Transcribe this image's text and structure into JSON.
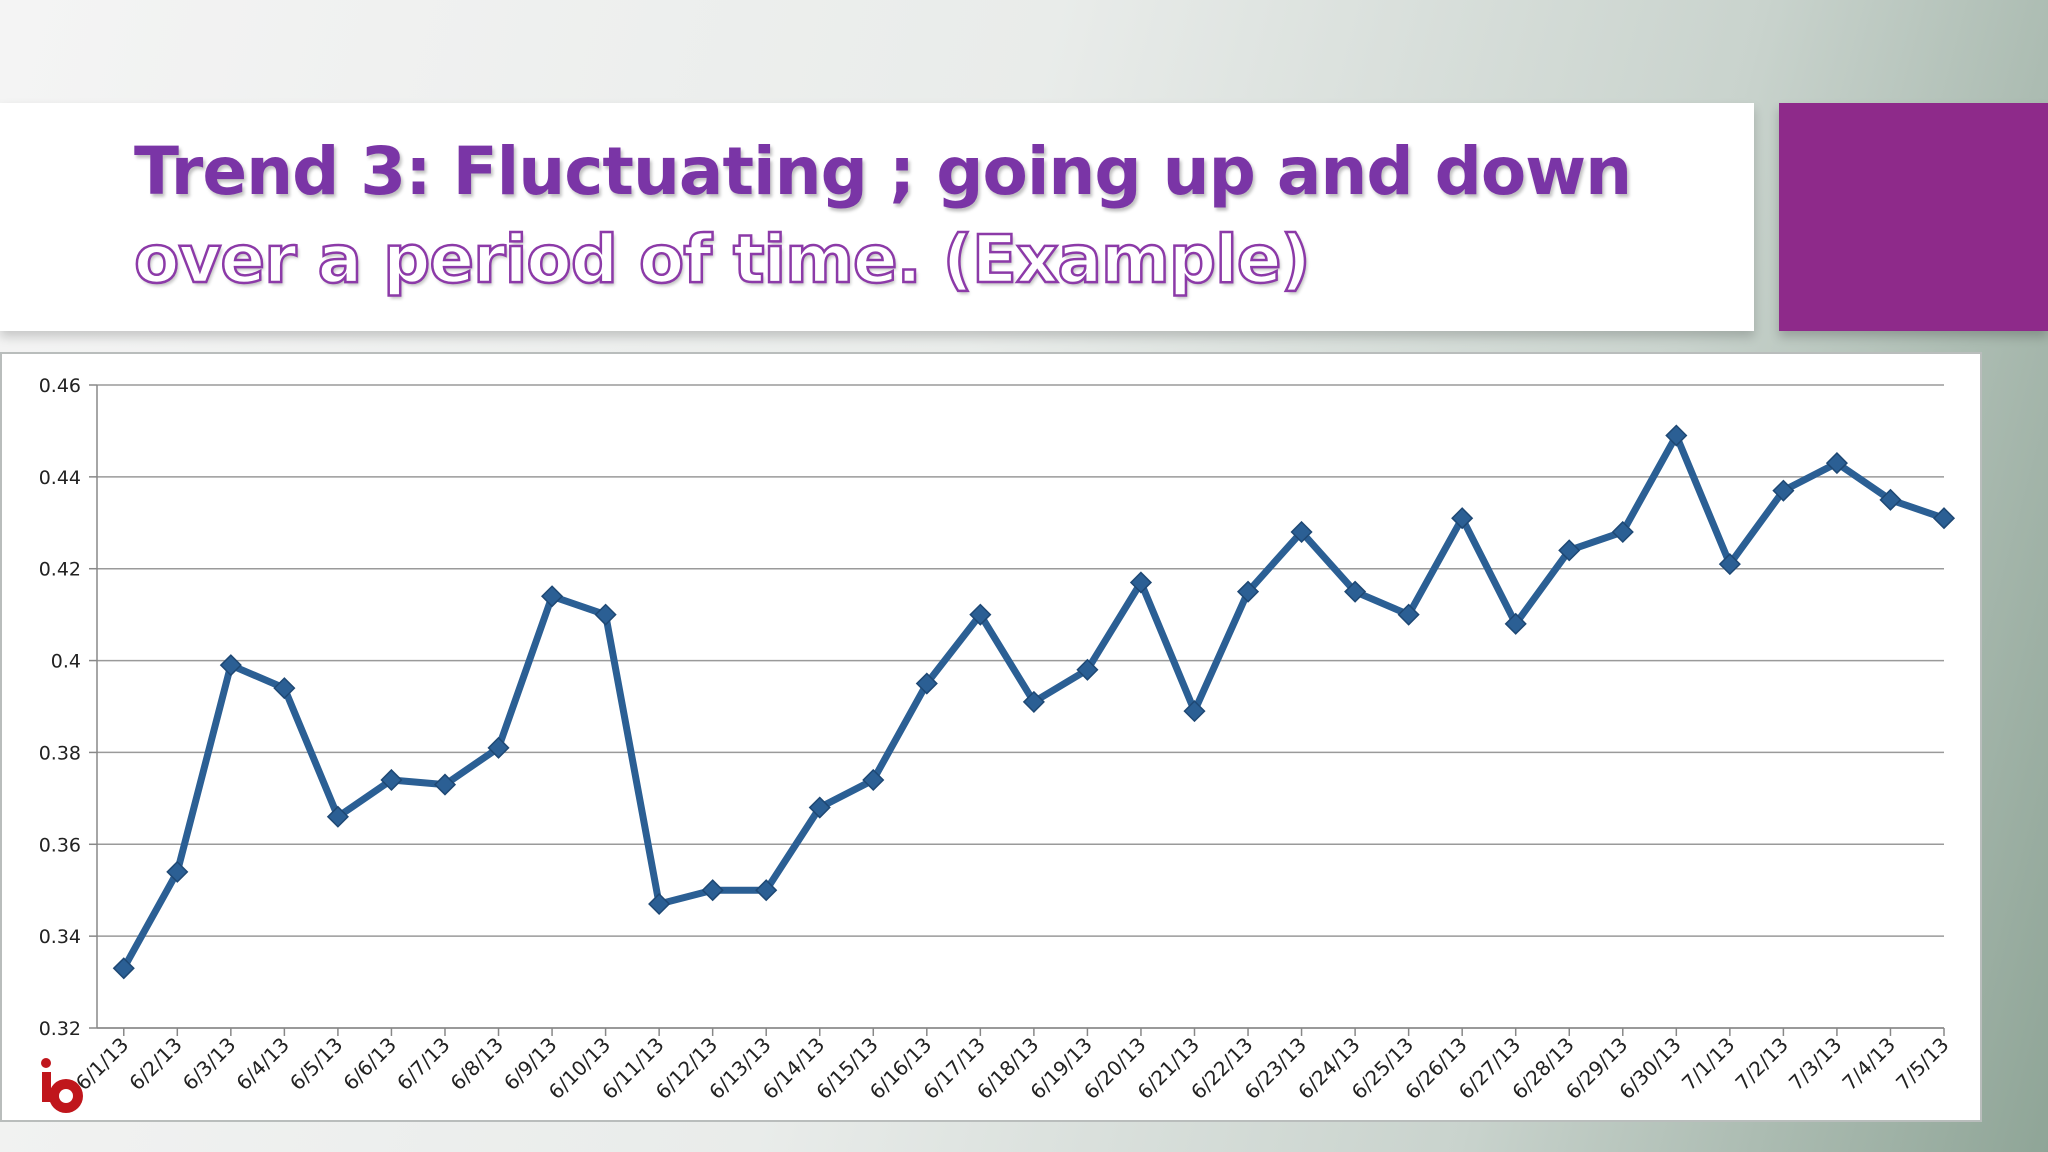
{
  "slide": {
    "title_solid": "Trend 3: Fluctuating ; going up and down",
    "title_outline": " over a period of time. (Example)",
    "accent_color": "#8e2a8a",
    "title_color": "#7a35a6"
  },
  "logo": {
    "text": "ielts Backup",
    "icon": "ielts-backup-logo",
    "color": "#c0161c"
  },
  "chart_data": {
    "type": "line",
    "line_color": "#2b5f94",
    "grid": true,
    "ylim": [
      0.32,
      0.46
    ],
    "yticks": [
      "0.32",
      "0.34",
      "0.36",
      "0.38",
      "0.4",
      "0.42",
      "0.44",
      "0.46"
    ],
    "categories": [
      "6/1/13",
      "6/2/13",
      "6/3/13",
      "6/4/13",
      "6/5/13",
      "6/6/13",
      "6/7/13",
      "6/8/13",
      "6/9/13",
      "6/10/13",
      "6/11/13",
      "6/12/13",
      "6/13/13",
      "6/14/13",
      "6/15/13",
      "6/16/13",
      "6/17/13",
      "6/18/13",
      "6/19/13",
      "6/20/13",
      "6/21/13",
      "6/22/13",
      "6/23/13",
      "6/24/13",
      "6/25/13",
      "6/26/13",
      "6/27/13",
      "6/28/13",
      "6/29/13",
      "6/30/13",
      "7/1/13",
      "7/2/13",
      "7/3/13",
      "7/4/13",
      "7/5/13"
    ],
    "values": [
      0.333,
      0.354,
      0.399,
      0.394,
      0.366,
      0.374,
      0.373,
      0.381,
      0.414,
      0.41,
      0.347,
      0.35,
      0.35,
      0.368,
      0.374,
      0.395,
      0.41,
      0.391,
      0.398,
      0.417,
      0.389,
      0.415,
      0.428,
      0.415,
      0.41,
      0.431,
      0.408,
      0.424,
      0.428,
      0.449,
      0.421,
      0.437,
      0.443,
      0.435,
      0.431
    ]
  }
}
